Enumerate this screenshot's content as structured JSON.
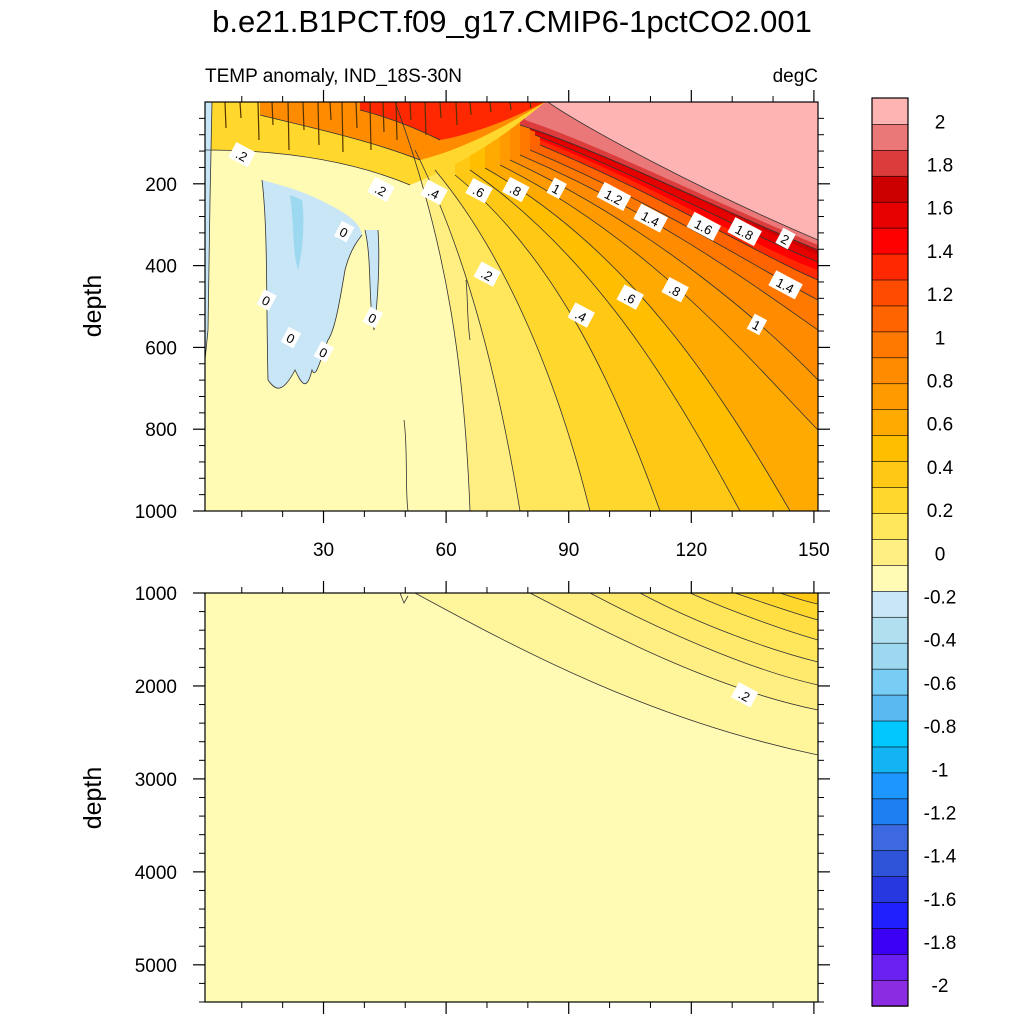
{
  "chart_data": {
    "type": "heatmap",
    "title": "b.e21.B1PCT.f09_g17.CMIP6-1pctCO2.001",
    "subtitle_left": "TEMP anomaly, IND_18S-30N",
    "subtitle_right": "degC",
    "xlabel": "",
    "ylabel": "depth",
    "x_ticks": [
      "30",
      "60",
      "90",
      "120",
      "150"
    ],
    "x_tick_values": [
      30,
      60,
      90,
      120,
      150
    ],
    "xlim": [
      1,
      151
    ],
    "upper_panel": {
      "ylim": [
        1000,
        0
      ],
      "y_ticks": [
        "200",
        "400",
        "600",
        "800",
        "1000"
      ],
      "y_tick_values": [
        200,
        400,
        600,
        800,
        1000
      ],
      "contour_labels": [
        {
          "text": ".2",
          "x": 10,
          "y": 130
        },
        {
          "text": ".2",
          "x": 44,
          "y": 215
        },
        {
          "text": "0",
          "x": 35,
          "y": 318
        },
        {
          "text": "0",
          "x": 16,
          "y": 485
        },
        {
          "text": "0",
          "x": 42,
          "y": 528
        },
        {
          "text": "0",
          "x": 22,
          "y": 577
        },
        {
          "text": "0",
          "x": 30,
          "y": 612
        },
        {
          "text": ".4",
          "x": 57,
          "y": 222
        },
        {
          "text": ".6",
          "x": 68,
          "y": 218
        },
        {
          "text": ".8",
          "x": 77,
          "y": 215
        },
        {
          "text": "1",
          "x": 87,
          "y": 212
        },
        {
          "text": "1.2",
          "x": 101,
          "y": 232
        },
        {
          "text": "1.4",
          "x": 110,
          "y": 285
        },
        {
          "text": "1.6",
          "x": 123,
          "y": 305
        },
        {
          "text": "1.8",
          "x": 133,
          "y": 318
        },
        {
          "text": "2",
          "x": 143,
          "y": 335
        },
        {
          "text": ".2",
          "x": 70,
          "y": 422
        },
        {
          "text": ".4",
          "x": 93,
          "y": 522
        },
        {
          "text": ".6",
          "x": 105,
          "y": 478
        },
        {
          "text": ".8",
          "x": 116,
          "y": 460
        },
        {
          "text": "1",
          "x": 136,
          "y": 545
        },
        {
          "text": "1.4",
          "x": 143,
          "y": 448
        }
      ]
    },
    "lower_panel": {
      "ylim": [
        5400,
        1000
      ],
      "y_ticks": [
        "1000",
        "2000",
        "3000",
        "4000",
        "5000"
      ],
      "y_tick_values": [
        1000,
        2000,
        3000,
        4000,
        5000
      ],
      "contour_labels": [
        {
          "text": ".2",
          "x": 133,
          "y": 2100
        }
      ]
    },
    "colorbar": {
      "levels": [
        -2,
        -1.8,
        -1.6,
        -1.4,
        -1.2,
        -1,
        -0.8,
        -0.6,
        -0.4,
        -0.2,
        0,
        0.2,
        0.4,
        0.6,
        0.8,
        1,
        1.2,
        1.4,
        1.6,
        1.8,
        2
      ],
      "labels": [
        "-2",
        "-1.8",
        "-1.6",
        "-1.4",
        "-1.2",
        "-1",
        "-0.8",
        "-0.6",
        "-0.4",
        "-0.2",
        "0",
        "0.2",
        "0.4",
        "0.6",
        "0.8",
        "1",
        "1.2",
        "1.4",
        "1.6",
        "1.8",
        "2"
      ],
      "colors": [
        "#8b2be2",
        "#6a20f0",
        "#3c00f5",
        "#2020ff",
        "#2838e0",
        "#2e52d8",
        "#3c68e0",
        "#1e7ff2",
        "#1e96ff",
        "#12b4f2",
        "#00c8ff",
        "#5ab9f0",
        "#79cdf5",
        "#9cd8f0",
        "#b2dff0",
        "#c8e6f5",
        "#fffab4",
        "#ffef82",
        "#ffe65a",
        "#ffd72d",
        "#ffc814",
        "#ffbe00",
        "#ffaa00",
        "#ff9b00",
        "#ff8c00",
        "#ff7800",
        "#ff6400",
        "#ff4b00",
        "#ff2800",
        "#ff0000",
        "#e60000",
        "#cd0000",
        "#dc3c3c",
        "#eb7878",
        "#ffb4b4"
      ]
    }
  }
}
